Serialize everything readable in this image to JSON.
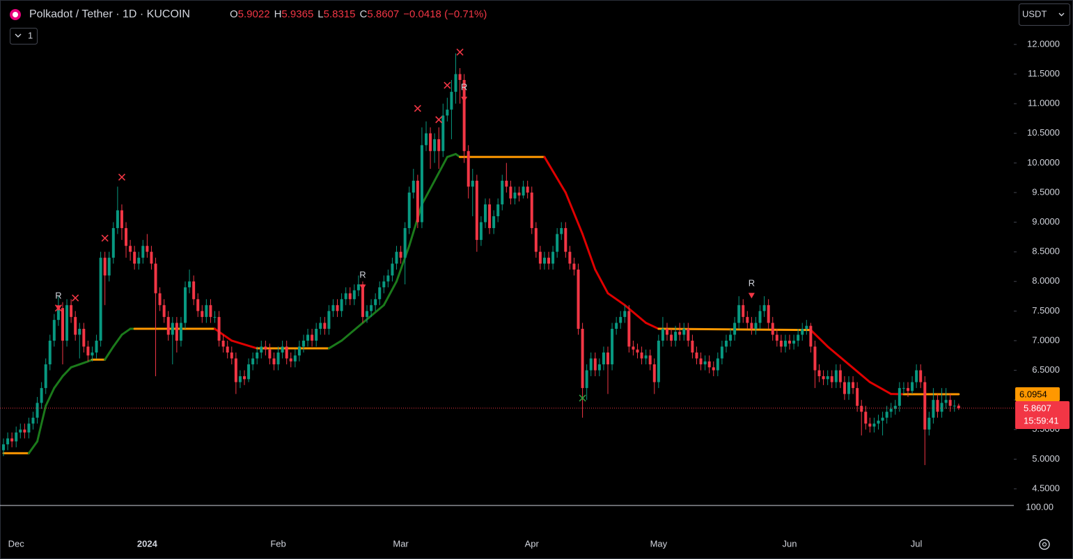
{
  "chart_data": {
    "type": "candlestick",
    "title": "Polkadot / Tether · 1D · KUCOIN",
    "ohlc_labels": [
      "O",
      "H",
      "L",
      "C"
    ],
    "change": "−0.0418 (−0.71%)",
    "up_color": "#089981",
    "down_color": "#f23645",
    "categories": [
      null,
      null,
      null,
      "Dec",
      null,
      null,
      null,
      null,
      null,
      null,
      null,
      null,
      null,
      null,
      null,
      null,
      null,
      null,
      null,
      null,
      null,
      null,
      null,
      null,
      null,
      null,
      null,
      null,
      null,
      null,
      null,
      null,
      null,
      null,
      "2024",
      null,
      null,
      null,
      null,
      null,
      null,
      null,
      null,
      null,
      null,
      null,
      null,
      null,
      null,
      null,
      null,
      null,
      null,
      null,
      null,
      null,
      null,
      null,
      null,
      null,
      null,
      null,
      null,
      null,
      null,
      "Feb",
      null,
      null,
      null,
      null,
      null,
      null,
      null,
      null,
      null,
      null,
      null,
      null,
      null,
      null,
      null,
      null,
      null,
      null,
      null,
      null,
      null,
      null,
      null,
      null,
      null,
      null,
      null,
      null,
      "Mar",
      null,
      null,
      null,
      null,
      null,
      null,
      null,
      null,
      null,
      null,
      null,
      null,
      null,
      null,
      null,
      null,
      null,
      null,
      null,
      null,
      null,
      null,
      null,
      null,
      null,
      null,
      null,
      null,
      null,
      null,
      "Apr",
      null,
      null,
      null,
      null,
      null,
      null,
      null,
      null,
      null,
      null,
      null,
      null,
      null,
      null,
      null,
      null,
      null,
      null,
      null,
      null,
      null,
      null,
      null,
      null,
      null,
      null,
      null,
      null,
      null,
      "May",
      null,
      null,
      null,
      null,
      null,
      null,
      null,
      null,
      null,
      null,
      null,
      null,
      null,
      null,
      null,
      null,
      null,
      null,
      null,
      null,
      null,
      null,
      null,
      null,
      null,
      null,
      null,
      null,
      null,
      null,
      "Jun",
      null,
      null,
      null,
      null,
      null,
      null,
      null,
      null,
      null,
      null,
      null,
      null,
      null,
      null,
      null,
      null,
      null,
      null,
      null,
      null,
      null,
      null,
      null,
      null,
      null,
      null,
      null,
      null,
      null,
      "Jul",
      null,
      null,
      null,
      null,
      null,
      null,
      null,
      null,
      null,
      null
    ],
    "open": [
      5.15,
      5.25,
      5.35,
      5.3,
      5.45,
      5.5,
      5.45,
      5.6,
      5.7,
      5.95,
      6.2,
      6.6,
      7.0,
      7.35,
      7.55,
      7.0,
      7.6,
      7.4,
      7.1,
      7.2,
      6.9,
      6.75,
      6.8,
      7.0,
      8.4,
      8.1,
      8.4,
      8.9,
      9.2,
      8.9,
      8.6,
      8.5,
      8.3,
      8.4,
      8.6,
      8.5,
      8.3,
      7.8,
      7.6,
      7.4,
      7.1,
      7.3,
      7.0,
      7.3,
      7.9,
      8.0,
      7.7,
      7.5,
      7.4,
      7.6,
      7.4,
      7.4,
      7.0,
      6.9,
      6.8,
      6.7,
      6.3,
      6.4,
      6.35,
      6.6,
      6.7,
      6.8,
      6.9,
      6.85,
      6.7,
      6.6,
      6.8,
      6.9,
      6.7,
      6.65,
      6.75,
      6.9,
      7.0,
      7.1,
      7.0,
      7.2,
      7.3,
      7.2,
      7.5,
      7.6,
      7.5,
      7.7,
      7.8,
      7.7,
      7.85,
      7.95,
      7.4,
      7.5,
      7.6,
      7.7,
      7.9,
      8.0,
      8.1,
      8.3,
      8.5,
      8.4,
      8.9,
      9.5,
      9.7,
      9.0,
      10.3,
      10.5,
      10.2,
      10.4,
      10.2,
      10.8,
      10.9,
      11.2,
      11.5,
      11.4,
      10.2,
      9.6,
      9.7,
      8.7,
      9.0,
      9.3,
      8.9,
      9.1,
      9.3,
      9.7,
      9.6,
      9.4,
      9.5,
      9.45,
      9.6,
      9.5,
      8.9,
      8.5,
      8.3,
      8.4,
      8.3,
      8.5,
      8.8,
      8.9,
      8.5,
      8.3,
      8.2,
      7.2,
      6.2,
      6.5,
      6.7,
      6.5,
      6.6,
      6.8,
      6.6,
      7.2,
      7.3,
      7.4,
      7.5,
      6.9,
      6.85,
      6.8,
      6.7,
      6.75,
      6.6,
      6.3,
      7.0,
      7.2,
      7.1,
      7.0,
      7.15,
      7.1,
      7.2,
      7.0,
      6.8,
      6.7,
      6.6,
      6.65,
      6.55,
      6.5,
      6.7,
      6.9,
      7.0,
      7.1,
      7.3,
      7.6,
      7.4,
      7.3,
      7.2,
      7.3,
      7.5,
      7.6,
      7.3,
      7.1,
      7.0,
      6.9,
      7.0,
      6.95,
      7.0,
      7.1,
      7.2,
      7.25,
      6.9,
      6.5,
      6.4,
      6.35,
      6.4,
      6.3,
      6.5,
      6.3,
      6.1,
      6.3,
      6.2,
      5.9,
      5.8,
      5.6,
      5.55,
      5.6,
      5.65,
      5.7,
      5.8,
      5.85,
      5.9,
      6.2,
      6.2,
      6.15,
      6.3,
      6.5,
      6.3,
      5.5,
      5.7,
      6.0,
      5.8,
      5.95,
      6.0,
      5.9,
      5.9022
    ],
    "high": [
      5.35,
      5.45,
      5.45,
      5.55,
      5.6,
      5.6,
      5.7,
      5.8,
      6.05,
      6.3,
      6.7,
      7.1,
      7.45,
      7.75,
      7.65,
      7.7,
      7.7,
      7.5,
      7.3,
      7.3,
      7.0,
      6.9,
      7.1,
      8.5,
      8.5,
      8.5,
      9.0,
      9.6,
      9.3,
      9.0,
      8.7,
      8.6,
      8.5,
      8.7,
      8.8,
      8.6,
      8.4,
      7.9,
      7.7,
      7.5,
      7.4,
      7.4,
      7.4,
      8.0,
      8.2,
      8.1,
      7.8,
      7.6,
      7.7,
      7.7,
      7.5,
      7.5,
      7.1,
      7.0,
      6.9,
      6.8,
      6.5,
      6.5,
      6.7,
      6.8,
      6.9,
      7.0,
      7.0,
      6.95,
      6.8,
      6.9,
      7.0,
      7.0,
      6.8,
      6.85,
      7.0,
      7.1,
      7.2,
      7.2,
      7.3,
      7.4,
      7.4,
      7.6,
      7.7,
      7.7,
      7.8,
      7.9,
      7.9,
      7.95,
      8.1,
      8.0,
      7.6,
      7.7,
      7.8,
      8.0,
      8.1,
      8.2,
      8.4,
      8.6,
      8.6,
      9.0,
      9.6,
      9.9,
      9.8,
      10.6,
      10.7,
      10.6,
      10.5,
      10.6,
      11.0,
      11.1,
      11.4,
      11.85,
      11.6,
      11.5,
      10.3,
      9.9,
      9.8,
      9.1,
      9.4,
      9.4,
      9.2,
      9.4,
      9.8,
      10.0,
      9.7,
      9.6,
      9.6,
      9.7,
      9.7,
      9.6,
      9.0,
      8.6,
      8.5,
      8.5,
      8.6,
      8.9,
      9.0,
      9.0,
      8.6,
      8.4,
      8.3,
      7.3,
      6.6,
      6.8,
      6.8,
      6.7,
      6.9,
      6.9,
      7.3,
      7.4,
      7.5,
      7.6,
      7.6,
      7.0,
      6.95,
      6.9,
      6.85,
      6.85,
      6.7,
      7.1,
      7.4,
      7.3,
      7.2,
      7.25,
      7.3,
      7.3,
      7.3,
      7.1,
      6.9,
      6.8,
      6.75,
      6.75,
      6.65,
      6.8,
      7.0,
      7.1,
      7.2,
      7.4,
      7.75,
      7.7,
      7.5,
      7.4,
      7.4,
      7.6,
      7.75,
      7.7,
      7.4,
      7.2,
      7.1,
      7.1,
      7.1,
      7.1,
      7.2,
      7.3,
      7.35,
      7.3,
      7.0,
      6.6,
      6.5,
      6.5,
      6.5,
      6.6,
      6.6,
      6.4,
      6.4,
      6.4,
      6.3,
      6.0,
      5.9,
      5.7,
      5.7,
      5.75,
      5.8,
      5.9,
      5.95,
      6.0,
      6.3,
      6.3,
      6.3,
      6.4,
      6.6,
      6.6,
      6.4,
      5.8,
      6.2,
      6.1,
      6.2,
      6.2,
      6.1,
      6.0,
      5.9365
    ],
    "low": [
      5.05,
      5.15,
      5.2,
      5.2,
      5.35,
      5.35,
      5.35,
      5.5,
      5.6,
      5.85,
      6.1,
      6.5,
      6.9,
      7.25,
      6.6,
      6.9,
      7.3,
      7.0,
      6.7,
      6.8,
      6.65,
      6.65,
      6.7,
      6.9,
      7.6,
      8.0,
      8.3,
      8.8,
      8.7,
      8.4,
      8.35,
      8.2,
      8.2,
      8.3,
      8.4,
      8.2,
      6.4,
      7.5,
      7.3,
      7.0,
      6.6,
      6.8,
      6.9,
      7.2,
      7.8,
      7.6,
      7.4,
      7.3,
      7.3,
      7.3,
      7.3,
      6.9,
      6.8,
      6.7,
      6.6,
      6.1,
      6.2,
      6.25,
      6.3,
      6.5,
      6.6,
      6.7,
      6.75,
      6.6,
      6.5,
      6.5,
      6.7,
      6.6,
      6.55,
      6.55,
      6.65,
      6.8,
      6.9,
      6.9,
      6.9,
      7.1,
      7.1,
      7.1,
      7.4,
      7.4,
      7.4,
      7.6,
      7.6,
      7.6,
      7.75,
      7.3,
      7.3,
      7.4,
      7.5,
      7.6,
      7.8,
      7.9,
      8.0,
      8.2,
      8.3,
      7.95,
      8.8,
      9.4,
      8.9,
      8.9,
      10.2,
      9.9,
      10.0,
      9.9,
      10.1,
      10.7,
      10.4,
      11.0,
      11.0,
      10.0,
      9.4,
      9.1,
      8.5,
      8.6,
      8.9,
      8.8,
      8.8,
      9.0,
      9.2,
      9.5,
      9.3,
      9.3,
      9.35,
      9.4,
      9.4,
      8.8,
      8.4,
      8.2,
      8.2,
      8.2,
      8.2,
      8.4,
      8.7,
      8.4,
      8.2,
      8.1,
      7.1,
      5.7,
      6.0,
      6.4,
      6.4,
      6.4,
      6.5,
      6.1,
      6.5,
      7.1,
      7.2,
      7.3,
      6.8,
      6.75,
      6.7,
      6.6,
      6.6,
      6.5,
      6.1,
      6.2,
      6.9,
      7.0,
      6.9,
      6.9,
      7.0,
      7.0,
      6.9,
      6.7,
      6.6,
      6.5,
      6.5,
      6.45,
      6.4,
      6.4,
      6.6,
      6.8,
      6.9,
      7.0,
      7.2,
      7.3,
      7.2,
      7.1,
      7.1,
      7.2,
      7.4,
      7.2,
      7.0,
      6.9,
      6.8,
      6.8,
      6.85,
      6.85,
      6.9,
      7.0,
      7.1,
      6.8,
      6.2,
      6.3,
      6.25,
      6.25,
      6.2,
      6.2,
      6.2,
      6.0,
      6.0,
      6.1,
      5.8,
      5.4,
      5.5,
      5.45,
      5.45,
      5.5,
      5.4,
      5.6,
      5.7,
      5.75,
      5.8,
      6.1,
      6.05,
      6.1,
      6.2,
      6.2,
      4.9,
      5.4,
      5.6,
      5.7,
      5.7,
      5.85,
      5.8,
      5.8,
      5.8315
    ],
    "close": [
      5.25,
      5.35,
      5.3,
      5.45,
      5.5,
      5.45,
      5.6,
      5.7,
      5.95,
      6.2,
      6.6,
      7.0,
      7.35,
      7.55,
      7.0,
      7.6,
      7.4,
      7.1,
      7.2,
      6.9,
      6.75,
      6.8,
      7.0,
      8.4,
      8.1,
      8.4,
      8.9,
      9.2,
      8.9,
      8.6,
      8.5,
      8.3,
      8.4,
      8.6,
      8.5,
      8.3,
      7.8,
      7.6,
      7.4,
      7.1,
      7.3,
      7.0,
      7.3,
      7.9,
      8.0,
      7.7,
      7.5,
      7.4,
      7.6,
      7.4,
      7.4,
      7.0,
      6.9,
      6.8,
      6.7,
      6.3,
      6.4,
      6.35,
      6.6,
      6.7,
      6.8,
      6.9,
      6.85,
      6.7,
      6.6,
      6.8,
      6.9,
      6.7,
      6.65,
      6.75,
      6.9,
      7.0,
      7.1,
      7.0,
      7.2,
      7.3,
      7.2,
      7.5,
      7.6,
      7.5,
      7.7,
      7.8,
      7.7,
      7.85,
      7.95,
      7.4,
      7.5,
      7.6,
      7.7,
      7.9,
      8.0,
      8.1,
      8.3,
      8.5,
      8.4,
      8.9,
      9.5,
      9.7,
      9.0,
      10.3,
      10.5,
      10.2,
      10.4,
      10.2,
      10.8,
      10.9,
      11.2,
      11.5,
      11.4,
      10.2,
      9.6,
      9.7,
      8.7,
      9.0,
      9.3,
      8.9,
      9.1,
      9.3,
      9.7,
      9.6,
      9.4,
      9.5,
      9.45,
      9.6,
      9.5,
      8.9,
      8.5,
      8.3,
      8.4,
      8.3,
      8.5,
      8.8,
      8.9,
      8.5,
      8.3,
      8.2,
      7.2,
      6.2,
      6.5,
      6.7,
      6.5,
      6.6,
      6.8,
      6.6,
      7.2,
      7.3,
      7.4,
      7.5,
      6.9,
      6.85,
      6.8,
      6.7,
      6.75,
      6.6,
      6.3,
      7.0,
      7.2,
      7.1,
      7.0,
      7.15,
      7.1,
      7.2,
      7.0,
      6.8,
      6.7,
      6.6,
      6.65,
      6.55,
      6.5,
      6.7,
      6.9,
      7.0,
      7.1,
      7.3,
      7.6,
      7.4,
      7.3,
      7.2,
      7.3,
      7.5,
      7.6,
      7.3,
      7.1,
      7.0,
      6.9,
      7.0,
      6.95,
      7.0,
      7.1,
      7.2,
      7.25,
      6.9,
      6.5,
      6.4,
      6.35,
      6.4,
      6.3,
      6.5,
      6.3,
      6.1,
      6.3,
      6.2,
      5.9,
      5.8,
      5.6,
      5.55,
      5.6,
      5.65,
      5.7,
      5.8,
      5.85,
      5.9,
      6.2,
      6.2,
      6.15,
      6.3,
      6.5,
      6.3,
      5.5,
      5.7,
      6.0,
      5.8,
      5.95,
      6.0,
      5.9,
      5.9022,
      5.8607
    ],
    "ylim": [
      4.23,
      12.75
    ],
    "yticks": [
      {
        "value": 4.5,
        "label": "4.5000"
      },
      {
        "value": 5,
        "label": "5.0000"
      },
      {
        "value": 5.5,
        "label": "5.5000"
      },
      {
        "value": 6,
        "label": "6.0000"
      },
      {
        "value": 6.5,
        "label": "6.5000"
      },
      {
        "value": 7,
        "label": "7.0000"
      },
      {
        "value": 7.5,
        "label": "7.5000"
      },
      {
        "value": 8,
        "label": "8.0000"
      },
      {
        "value": 8.5,
        "label": "8.5000"
      },
      {
        "value": 9,
        "label": "9.0000"
      },
      {
        "value": 9.5,
        "label": "9.5000"
      },
      {
        "value": 10,
        "label": "10.0000"
      },
      {
        "value": 10.5,
        "label": "10.5000"
      },
      {
        "value": 11,
        "label": "11.0000"
      },
      {
        "value": 11.5,
        "label": "11.5000"
      },
      {
        "value": 12,
        "label": "12.0000"
      }
    ],
    "trend": {
      "x": [
        0,
        6,
        8,
        10,
        12,
        14,
        16,
        18,
        20,
        21,
        24,
        26,
        28,
        30,
        31,
        50,
        54,
        60,
        77,
        80,
        85,
        90,
        93,
        96,
        99,
        102,
        105,
        107,
        108,
        128,
        133,
        137,
        140,
        143,
        147,
        152,
        155,
        191,
        195,
        200,
        205,
        210,
        213,
        226
      ],
      "values": [
        5.1,
        5.1,
        5.3,
        5.9,
        6.2,
        6.4,
        6.55,
        6.6,
        6.65,
        6.68,
        6.68,
        6.9,
        7.1,
        7.2,
        7.2,
        7.2,
        7.0,
        6.87,
        6.87,
        7.0,
        7.3,
        7.6,
        8.0,
        8.6,
        9.3,
        9.7,
        10.1,
        10.15,
        10.1,
        10.1,
        9.5,
        8.8,
        8.2,
        7.8,
        7.6,
        7.3,
        7.2,
        7.18,
        6.9,
        6.6,
        6.3,
        6.1,
        6.0954,
        6.0954
      ],
      "colors": [
        "#ff9800",
        "#1b7a1b",
        "#1b7a1b",
        "#1b7a1b",
        "#1b7a1b",
        "#1b7a1b",
        "#1b7a1b",
        "#1b7a1b",
        "#1b7a1b",
        "#ff9800",
        "#1b7a1b",
        "#1b7a1b",
        "#1b7a1b",
        "#1b7a1b",
        "#ff9800",
        "#e00000",
        "#e00000",
        "#ff9800",
        "#1b7a1b",
        "#1b7a1b",
        "#1b7a1b",
        "#1b7a1b",
        "#1b7a1b",
        "#1b7a1b",
        "#1b7a1b",
        "#1b7a1b",
        "#1b7a1b",
        "#1b7a1b",
        "#ff9800",
        "#e00000",
        "#e00000",
        "#e00000",
        "#e00000",
        "#e00000",
        "#e00000",
        "#e00000",
        "#ff9800",
        "#e00000",
        "#e00000",
        "#e00000",
        "#e00000",
        "#e00000",
        "#ff9800"
      ]
    },
    "markers": [
      {
        "x": 13,
        "y": 7.55,
        "color": "#f23645"
      },
      {
        "x": 17,
        "y": 7.72,
        "color": "#f23645"
      },
      {
        "x": 24,
        "y": 8.73,
        "color": "#f23645"
      },
      {
        "x": 28,
        "y": 9.76,
        "color": "#f23645"
      },
      {
        "x": 98,
        "y": 10.92,
        "color": "#f23645"
      },
      {
        "x": 103,
        "y": 10.73,
        "color": "#f23645"
      },
      {
        "x": 105,
        "y": 11.31,
        "color": "#f23645"
      },
      {
        "x": 108,
        "y": 11.87,
        "color": "#f23645"
      },
      {
        "x": 137,
        "y": 6.03,
        "color": "#2e9e3e"
      }
    ],
    "signals": [
      {
        "x": 13,
        "y": 7.55,
        "label": "R"
      },
      {
        "x": 85,
        "y": 7.9,
        "label": "R"
      },
      {
        "x": 109,
        "y": 11.07,
        "label": "R"
      },
      {
        "x": 177,
        "y": 7.76,
        "label": "R"
      }
    ],
    "countdown": "15:59:41",
    "volume_label": "100.00"
  },
  "ui": {
    "currency": "USDT",
    "panes": 1
  }
}
